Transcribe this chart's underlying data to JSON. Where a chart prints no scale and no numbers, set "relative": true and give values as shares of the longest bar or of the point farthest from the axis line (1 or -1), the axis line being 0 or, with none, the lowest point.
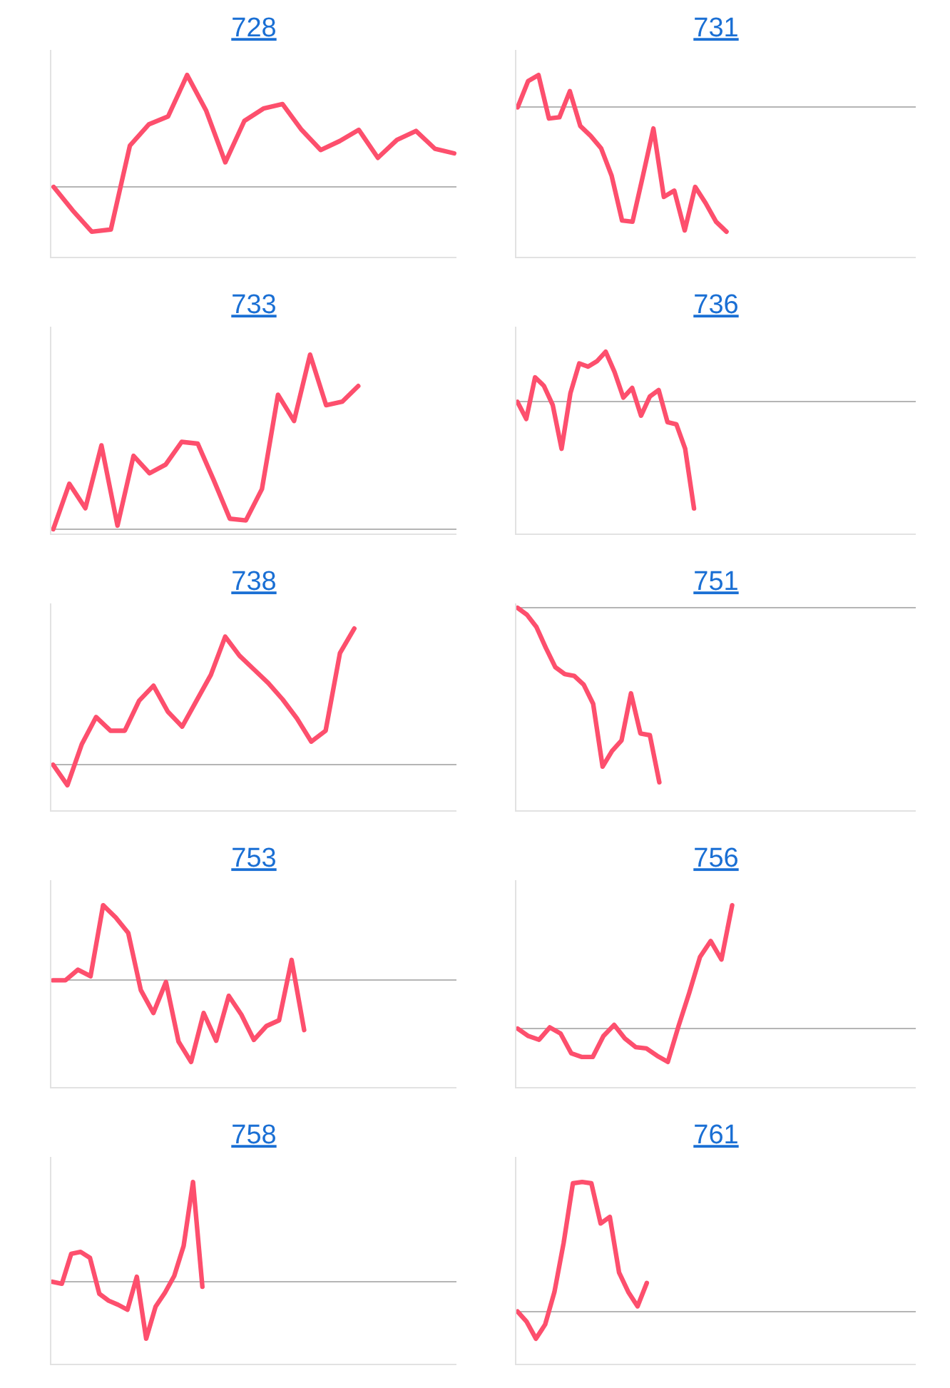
{
  "chart_data": [
    {
      "type": "line",
      "title": "728",
      "categories": [
        null,
        null,
        null,
        null,
        null,
        null,
        null,
        null,
        null,
        null,
        null,
        null,
        null,
        null,
        null,
        null,
        null,
        null,
        null,
        null,
        null,
        null
      ],
      "values": [
        0,
        -0.21,
        -0.4,
        -0.38,
        0.37,
        0.56,
        0.63,
        1,
        0.68,
        0.22,
        0.59,
        0.7,
        0.74,
        0.51,
        0.33,
        0.41,
        0.51,
        0.26,
        0.42,
        0.5,
        0.34,
        0.3
      ],
      "color": "#fd4f6d",
      "relative": true
    },
    {
      "type": "line",
      "title": "731",
      "categories": [
        null,
        null,
        null,
        null,
        null,
        null,
        null,
        null,
        null,
        null,
        null,
        null,
        null,
        null,
        null,
        null,
        null,
        null,
        null,
        null,
        null,
        null,
        null,
        null,
        null,
        null,
        null,
        null,
        null,
        null,
        null,
        null,
        null,
        null,
        null,
        null,
        null,
        null,
        null
      ],
      "values": [
        0,
        0.21,
        0.26,
        -0.09,
        -0.08,
        0.13,
        -0.15,
        -0.23,
        -0.33,
        -0.55,
        -0.91,
        -0.92,
        -0.55,
        -0.17,
        -0.72,
        -0.67,
        -0.99,
        -0.64,
        -0.77,
        -0.92,
        -1,
        null,
        null,
        null,
        null,
        null,
        null,
        null,
        null,
        null,
        null,
        null,
        null,
        null,
        null,
        null,
        null,
        null,
        null
      ],
      "color": "#fd4f6d",
      "relative": true
    },
    {
      "type": "line",
      "title": "733",
      "categories": [
        null,
        null,
        null,
        null,
        null,
        null,
        null,
        null,
        null,
        null,
        null,
        null,
        null,
        null,
        null,
        null,
        null,
        null,
        null,
        null,
        null,
        null,
        null,
        null,
        null,
        null
      ],
      "values": [
        0,
        0.26,
        0.12,
        0.48,
        0.02,
        0.42,
        0.32,
        0.37,
        0.5,
        0.49,
        0.28,
        0.06,
        0.05,
        0.23,
        0.77,
        0.62,
        1,
        0.71,
        0.73,
        0.82,
        null,
        null,
        null,
        null,
        null,
        null
      ],
      "color": "#fd4f6d",
      "relative": true
    },
    {
      "type": "line",
      "title": "736",
      "categories": [
        null,
        null,
        null,
        null,
        null,
        null,
        null,
        null,
        null,
        null,
        null,
        null,
        null,
        null,
        null,
        null,
        null,
        null,
        null,
        null,
        null,
        null,
        null,
        null,
        null,
        null,
        null,
        null,
        null,
        null,
        null,
        null,
        null,
        null,
        null,
        null,
        null,
        null,
        null,
        null,
        null,
        null,
        null,
        null,
        null,
        null
      ],
      "values": [
        0,
        -0.16,
        0.23,
        0.15,
        -0.03,
        -0.44,
        0.08,
        0.36,
        0.33,
        0.38,
        0.47,
        0.28,
        0.04,
        0.13,
        -0.13,
        0.05,
        0.11,
        -0.19,
        -0.21,
        -0.44,
        -1,
        null,
        null,
        null,
        null,
        null,
        null,
        null,
        null,
        null,
        null,
        null,
        null,
        null,
        null,
        null,
        null,
        null,
        null,
        null,
        null,
        null,
        null,
        null,
        null,
        null
      ],
      "color": "#fd4f6d",
      "relative": true
    },
    {
      "type": "line",
      "title": "738",
      "categories": [
        null,
        null,
        null,
        null,
        null,
        null,
        null,
        null,
        null,
        null,
        null,
        null,
        null,
        null,
        null,
        null,
        null,
        null,
        null,
        null,
        null,
        null,
        null,
        null,
        null,
        null,
        null,
        null,
        null
      ],
      "values": [
        0,
        -0.15,
        0.15,
        0.35,
        0.25,
        0.25,
        0.47,
        0.58,
        0.39,
        0.28,
        0.47,
        0.66,
        0.94,
        0.8,
        0.7,
        0.6,
        0.48,
        0.34,
        0.17,
        0.25,
        0.82,
        1,
        null,
        null,
        null,
        null,
        null,
        null,
        null
      ],
      "color": "#fd4f6d",
      "relative": true
    },
    {
      "type": "line",
      "title": "751",
      "categories": [
        null,
        null,
        null,
        null,
        null,
        null,
        null,
        null,
        null,
        null,
        null,
        null,
        null,
        null,
        null,
        null,
        null,
        null,
        null,
        null,
        null,
        null,
        null,
        null,
        null,
        null,
        null,
        null,
        null,
        null,
        null,
        null,
        null,
        null,
        null,
        null,
        null,
        null,
        null,
        null,
        null,
        null,
        null
      ],
      "values": [
        0,
        -0.04,
        -0.11,
        -0.23,
        -0.34,
        -0.38,
        -0.39,
        -0.44,
        -0.55,
        -0.91,
        -0.82,
        -0.76,
        -0.49,
        -0.72,
        -0.73,
        -1,
        null,
        null,
        null,
        null,
        null,
        null,
        null,
        null,
        null,
        null,
        null,
        null,
        null,
        null,
        null,
        null,
        null,
        null,
        null,
        null,
        null,
        null,
        null,
        null,
        null,
        null,
        null
      ],
      "color": "#fd4f6d",
      "relative": true
    },
    {
      "type": "line",
      "title": "753",
      "categories": [
        null,
        null,
        null,
        null,
        null,
        null,
        null,
        null,
        null,
        null,
        null,
        null,
        null,
        null,
        null,
        null,
        null,
        null,
        null,
        null,
        null,
        null,
        null,
        null,
        null,
        null,
        null,
        null,
        null,
        null,
        null,
        null,
        null
      ],
      "values": [
        0,
        0,
        0.13,
        0.05,
        0.92,
        0.77,
        0.58,
        -0.12,
        -0.4,
        -0.02,
        -0.75,
        -1,
        -0.4,
        -0.74,
        -0.19,
        -0.42,
        -0.73,
        -0.56,
        -0.49,
        0.25,
        -0.61,
        null,
        null,
        null,
        null,
        null,
        null,
        null,
        null,
        null,
        null,
        null,
        null
      ],
      "color": "#fd4f6d",
      "relative": true
    },
    {
      "type": "line",
      "title": "756",
      "categories": [
        null,
        null,
        null,
        null,
        null,
        null,
        null,
        null,
        null,
        null,
        null,
        null,
        null,
        null,
        null,
        null,
        null,
        null,
        null,
        null,
        null,
        null,
        null,
        null,
        null,
        null,
        null,
        null,
        null,
        null,
        null,
        null,
        null,
        null,
        null,
        null,
        null,
        null
      ],
      "values": [
        0,
        -0.06,
        -0.09,
        0.01,
        -0.04,
        -0.2,
        -0.23,
        -0.23,
        -0.06,
        0.03,
        -0.08,
        -0.15,
        -0.16,
        -0.22,
        -0.27,
        0.02,
        0.29,
        0.58,
        0.71,
        0.56,
        1,
        null,
        null,
        null,
        null,
        null,
        null,
        null,
        null,
        null,
        null,
        null,
        null,
        null,
        null,
        null,
        null,
        null
      ],
      "color": "#fd4f6d",
      "relative": true
    },
    {
      "type": "line",
      "title": "758",
      "categories": [
        null,
        null,
        null,
        null,
        null,
        null,
        null,
        null,
        null,
        null,
        null,
        null,
        null,
        null,
        null,
        null,
        null,
        null,
        null,
        null,
        null,
        null,
        null,
        null,
        null,
        null,
        null,
        null,
        null,
        null,
        null,
        null,
        null,
        null,
        null,
        null,
        null,
        null,
        null,
        null,
        null,
        null,
        null,
        null
      ],
      "values": [
        0,
        -0.02,
        0.28,
        0.3,
        0.24,
        -0.12,
        -0.19,
        -0.23,
        -0.28,
        0.05,
        -0.57,
        -0.25,
        -0.11,
        0.06,
        0.36,
        1,
        -0.05,
        null,
        null,
        null,
        null,
        null,
        null,
        null,
        null,
        null,
        null,
        null,
        null,
        null,
        null,
        null,
        null,
        null,
        null,
        null,
        null,
        null,
        null,
        null,
        null,
        null,
        null,
        null
      ],
      "color": "#fd4f6d",
      "relative": true
    },
    {
      "type": "line",
      "title": "761",
      "categories": [
        null,
        null,
        null,
        null,
        null,
        null,
        null,
        null,
        null,
        null,
        null,
        null,
        null,
        null,
        null,
        null,
        null,
        null,
        null,
        null,
        null,
        null,
        null,
        null,
        null,
        null,
        null,
        null,
        null,
        null,
        null,
        null,
        null,
        null,
        null,
        null,
        null,
        null,
        null,
        null,
        null,
        null,
        null,
        null
      ],
      "values": [
        0,
        -0.08,
        -0.21,
        -0.1,
        0.15,
        0.53,
        0.99,
        1,
        0.99,
        0.68,
        0.73,
        0.3,
        0.15,
        0.04,
        0.22,
        null,
        null,
        null,
        null,
        null,
        null,
        null,
        null,
        null,
        null,
        null,
        null,
        null,
        null,
        null,
        null,
        null,
        null,
        null,
        null,
        null,
        null,
        null,
        null,
        null,
        null,
        null,
        null,
        null
      ],
      "color": "#fd4f6d",
      "relative": true
    }
  ]
}
